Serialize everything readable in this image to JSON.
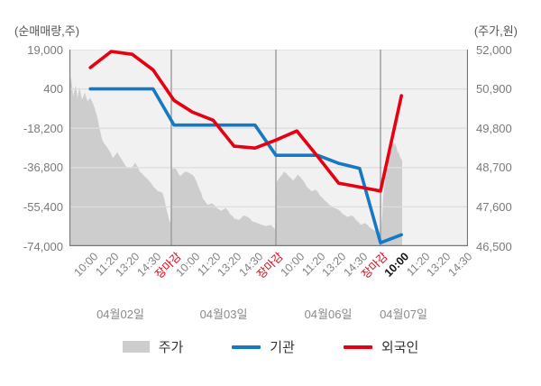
{
  "chart_data": {
    "type": "combo-line-area",
    "title": "",
    "left_axis": {
      "title": "(순매매량,주)",
      "ticks": [
        19000,
        400,
        -18200,
        -36800,
        -55400,
        -74000
      ],
      "max": 19000,
      "min": -74000
    },
    "right_axis": {
      "title": "(주가,원)",
      "ticks": [
        52000,
        50900,
        49800,
        48700,
        47600,
        46500
      ],
      "max": 52000,
      "min": 46500
    },
    "x_axis": {
      "close_label": "장마감",
      "days": [
        {
          "date": "04월02일",
          "times": [
            "10:00",
            "11:20",
            "13:20",
            "14:30"
          ],
          "has_close": true,
          "emphasize_first": false
        },
        {
          "date": "04월03일",
          "times": [
            "10:00",
            "11:20",
            "13:20",
            "14:30"
          ],
          "has_close": true,
          "emphasize_first": false
        },
        {
          "date": "04월06일",
          "times": [
            "10:00",
            "11:20",
            "13:20",
            "14:30"
          ],
          "has_close": true,
          "emphasize_first": false
        },
        {
          "date": "04월07일",
          "times": [
            "10:00",
            "11:20",
            "13:20",
            "14:30"
          ],
          "has_close": false,
          "emphasize_first": true
        }
      ]
    },
    "legend": [
      {
        "label": "주가",
        "type": "area",
        "color": "#cdcdcd"
      },
      {
        "label": "기관",
        "type": "line",
        "color": "#1579c4"
      },
      {
        "label": "외국인",
        "type": "line",
        "color": "#e60012"
      }
    ],
    "colors": {
      "price_area": "#cdcdcd",
      "institutions": "#1579c4",
      "foreigners": "#e60012",
      "plot_bg": "#f1f1f1",
      "h_grid": "#dddddd",
      "day_grid": "#9a9a9a",
      "axis_line": "#777777"
    },
    "series": [
      {
        "name": "기관",
        "type": "line",
        "axis": "left",
        "color": "#1579c4",
        "values_per_tick": [
          400,
          400,
          400,
          400,
          -16700,
          -16700,
          -16700,
          -16700,
          -16700,
          -31000,
          -31000,
          -31000,
          -34800,
          -37200,
          -72400,
          -68600
        ]
      },
      {
        "name": "외국인",
        "type": "line",
        "axis": "left",
        "color": "#e60012",
        "values_per_tick": [
          10500,
          18100,
          16800,
          9400,
          -5000,
          -10500,
          -14400,
          -26700,
          -27600,
          -23800,
          -19500,
          -31600,
          -44200,
          -46000,
          -47900,
          -2800
        ]
      },
      {
        "name": "주가",
        "type": "area",
        "axis": "right",
        "color": "#cdcdcd",
        "points": [
          [
            77,
            50900
          ],
          [
            79,
            51240
          ],
          [
            81,
            50700
          ],
          [
            84,
            51000
          ],
          [
            86,
            50650
          ],
          [
            88,
            50950
          ],
          [
            91,
            50600
          ],
          [
            94,
            50800
          ],
          [
            97,
            50550
          ],
          [
            100,
            50650
          ],
          [
            103,
            50500
          ],
          [
            105,
            50360
          ],
          [
            108,
            50100
          ],
          [
            110,
            49850
          ],
          [
            113,
            49500
          ],
          [
            115,
            49390
          ],
          [
            118,
            49300
          ],
          [
            120,
            49220
          ],
          [
            123,
            49100
          ],
          [
            125,
            48965
          ],
          [
            128,
            49050
          ],
          [
            130,
            49135
          ],
          [
            133,
            49000
          ],
          [
            135,
            48925
          ],
          [
            138,
            48800
          ],
          [
            140,
            48715
          ],
          [
            143,
            48690
          ],
          [
            145,
            48670
          ],
          [
            148,
            48760
          ],
          [
            150,
            48840
          ],
          [
            153,
            48700
          ],
          [
            155,
            48590
          ],
          [
            158,
            48520
          ],
          [
            160,
            48460
          ],
          [
            163,
            48400
          ],
          [
            165,
            48335
          ],
          [
            168,
            48250
          ],
          [
            170,
            48165
          ],
          [
            173,
            48100
          ],
          [
            175,
            48040
          ],
          [
            178,
            48020
          ],
          [
            180,
            48000
          ],
          [
            182,
            47850
          ],
          [
            185,
            47490
          ],
          [
            188,
            47200
          ],
          [
            189,
            47150
          ],
          [
            191,
            48670
          ],
          [
            195,
            48670
          ],
          [
            198,
            48520
          ],
          [
            200,
            48460
          ],
          [
            203,
            48530
          ],
          [
            205,
            48590
          ],
          [
            208,
            48570
          ],
          [
            210,
            48545
          ],
          [
            213,
            48500
          ],
          [
            215,
            48460
          ],
          [
            218,
            48300
          ],
          [
            220,
            48165
          ],
          [
            223,
            48000
          ],
          [
            225,
            47830
          ],
          [
            228,
            47740
          ],
          [
            230,
            47660
          ],
          [
            233,
            47680
          ],
          [
            235,
            47700
          ],
          [
            238,
            47640
          ],
          [
            240,
            47575
          ],
          [
            243,
            47530
          ],
          [
            245,
            47490
          ],
          [
            248,
            47530
          ],
          [
            250,
            47575
          ],
          [
            253,
            47490
          ],
          [
            255,
            47400
          ],
          [
            258,
            47340
          ],
          [
            260,
            47275
          ],
          [
            263,
            47250
          ],
          [
            265,
            47235
          ],
          [
            268,
            47300
          ],
          [
            270,
            47360
          ],
          [
            273,
            47340
          ],
          [
            275,
            47315
          ],
          [
            278,
            47250
          ],
          [
            280,
            47190
          ],
          [
            283,
            47170
          ],
          [
            285,
            47150
          ],
          [
            288,
            47120
          ],
          [
            290,
            47100
          ],
          [
            293,
            47080
          ],
          [
            295,
            47065
          ],
          [
            298,
            47080
          ],
          [
            300,
            47100
          ],
          [
            303,
            47030
          ],
          [
            305,
            46975
          ],
          [
            307,
            48300
          ],
          [
            310,
            48420
          ],
          [
            313,
            48500
          ],
          [
            315,
            48590
          ],
          [
            318,
            48520
          ],
          [
            320,
            48460
          ],
          [
            323,
            48400
          ],
          [
            325,
            48335
          ],
          [
            328,
            48420
          ],
          [
            330,
            48505
          ],
          [
            333,
            48440
          ],
          [
            335,
            48375
          ],
          [
            338,
            48270
          ],
          [
            340,
            48165
          ],
          [
            343,
            48100
          ],
          [
            345,
            48040
          ],
          [
            348,
            48060
          ],
          [
            350,
            48080
          ],
          [
            353,
            48000
          ],
          [
            355,
            47910
          ],
          [
            358,
            47845
          ],
          [
            360,
            47780
          ],
          [
            363,
            47720
          ],
          [
            365,
            47660
          ],
          [
            368,
            47620
          ],
          [
            370,
            47575
          ],
          [
            373,
            47550
          ],
          [
            375,
            47530
          ],
          [
            378,
            47465
          ],
          [
            380,
            47400
          ],
          [
            383,
            47360
          ],
          [
            385,
            47320
          ],
          [
            388,
            47340
          ],
          [
            390,
            47360
          ],
          [
            393,
            47300
          ],
          [
            395,
            47230
          ],
          [
            398,
            47165
          ],
          [
            400,
            47100
          ],
          [
            403,
            47125
          ],
          [
            405,
            47150
          ],
          [
            408,
            47085
          ],
          [
            410,
            47020
          ],
          [
            413,
            46980
          ],
          [
            415,
            46940
          ],
          [
            418,
            46915
          ],
          [
            420,
            46890
          ],
          [
            422,
            46880
          ],
          [
            424,
            47400
          ],
          [
            425,
            47900
          ],
          [
            427,
            48300
          ],
          [
            428,
            48660
          ],
          [
            430,
            49080
          ],
          [
            432,
            49200
          ],
          [
            434,
            49350
          ],
          [
            436,
            49450
          ],
          [
            437,
            49300
          ],
          [
            438,
            49400
          ],
          [
            440,
            49250
          ],
          [
            441,
            49100
          ],
          [
            442,
            49150
          ],
          [
            443,
            49050
          ],
          [
            444,
            48980
          ],
          [
            446,
            48900
          ]
        ]
      }
    ]
  }
}
